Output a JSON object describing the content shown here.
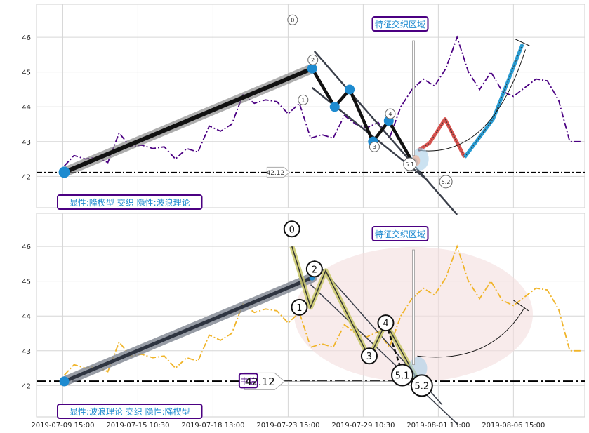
{
  "chart_data": [
    {
      "type": "line",
      "panel": "top",
      "ylim": [
        41.1,
        46.95
      ],
      "y_ticks": [
        "42",
        "43",
        "44",
        "45",
        "46"
      ],
      "grid": true,
      "annotations": {
        "region_label": "特征交织区域",
        "bottom_label": "显性:降楔型 交织 隐性:波浪理论",
        "level_value": "42.12",
        "wave_labels": [
          "0",
          "1",
          "2",
          "3",
          "4",
          "5.1",
          "5.2"
        ]
      },
      "colors": {
        "price": "#4b0082",
        "trend": "#111111",
        "markers": "#1e8bd0",
        "channel": "#3a3f4a",
        "proj_red": "#d9534f",
        "proj_blue": "#2a9fd6",
        "box_border": "#4b0082",
        "box_text": "#1e8bd0"
      },
      "series": [
        {
          "style": "dashdot",
          "x": [
            0.2,
            1.5,
            3.0,
            4.5,
            6.0,
            7.5,
            9.0,
            10.5,
            12.0,
            13.5,
            15.0,
            16.5,
            18.0,
            19.5,
            21.0,
            22.5,
            24.0,
            25.5,
            27.0,
            28.5,
            30.0,
            31.5,
            33.0,
            34.5,
            36.0,
            37.5,
            39.0,
            40.5,
            42.0,
            43.5,
            45.0,
            46.5,
            48.0,
            49.5,
            51.0,
            52.5,
            54.0,
            55.5,
            57.0,
            58.5,
            60.0,
            61.5,
            63.0,
            64.5,
            66.0,
            67.5,
            69.0
          ],
          "y": [
            42.3,
            42.6,
            42.5,
            42.55,
            42.4,
            43.25,
            42.85,
            42.9,
            42.8,
            42.85,
            42.5,
            42.8,
            42.7,
            43.45,
            43.3,
            43.5,
            44.35,
            44.1,
            44.2,
            44.15,
            43.8,
            44.1,
            43.1,
            43.2,
            43.1,
            43.75,
            43.5,
            43.4,
            43.55,
            43.1,
            44.0,
            44.5,
            44.8,
            44.6,
            45.1,
            46.0,
            45.0,
            44.5,
            45.0,
            44.45,
            44.3,
            44.55,
            44.8,
            44.75,
            44.2,
            43.0,
            43.0
          ]
        }
      ],
      "wave_points": {
        "x": [
          0.2,
          33.2,
          36.2,
          38.2,
          41.3,
          43.4,
          46.6
        ],
        "y": [
          42.12,
          45.1,
          44.0,
          44.5,
          43.0,
          43.6,
          42.4
        ]
      },
      "projection": {
        "x": [
          47.3,
          48.8,
          50.9,
          53.5,
          57.3,
          61.2
        ],
        "y": [
          42.75,
          42.95,
          43.65,
          42.55,
          43.65,
          45.8
        ]
      }
    },
    {
      "type": "line",
      "panel": "bottom",
      "xlim": [
        -3.5,
        69.5
      ],
      "ylim": [
        41.1,
        46.95
      ],
      "x_ticks": [
        "2019-07-09 15:00",
        "2019-07-15 10:30",
        "2019-07-18 13:00",
        "2019-07-23 15:00",
        "2019-07-29 10:30",
        "2019-08-01 13:00",
        "2019-08-06 15:00"
      ],
      "y_ticks": [
        "42",
        "43",
        "44",
        "45",
        "46"
      ],
      "grid": true,
      "annotations": {
        "region_label": "特征交织区域",
        "bottom_label": "显性:波浪理论 交织 隐性:降楔型",
        "level_label_prefix": "中信",
        "level_value": "42.12",
        "wave_labels": [
          "0",
          "1",
          "2",
          "3",
          "4",
          "5.1",
          "5.2"
        ]
      },
      "colors": {
        "price": "#f0b429",
        "trend": "#2e3440",
        "wave": "#c9c86a",
        "ellipse": "#f7e3e3",
        "markers": "#1e8bd0",
        "box_border": "#4b0082",
        "box_text": "#1e8bd0"
      },
      "series": [
        {
          "style": "dashdot",
          "x": [
            0.2,
            1.5,
            3.0,
            4.5,
            6.0,
            7.5,
            9.0,
            10.5,
            12.0,
            13.5,
            15.0,
            16.5,
            18.0,
            19.5,
            21.0,
            22.5,
            24.0,
            25.5,
            27.0,
            28.5,
            30.0,
            31.5,
            33.0,
            34.5,
            36.0,
            37.5,
            39.0,
            40.5,
            42.0,
            43.5,
            45.0,
            46.5,
            48.0,
            49.5,
            51.0,
            52.5,
            54.0,
            55.5,
            57.0,
            58.5,
            60.0,
            61.5,
            63.0,
            64.5,
            66.0,
            67.5,
            69.0
          ],
          "y": [
            42.3,
            42.6,
            42.5,
            42.55,
            42.4,
            43.25,
            42.85,
            42.9,
            42.8,
            42.85,
            42.5,
            42.8,
            42.7,
            43.45,
            43.3,
            43.5,
            44.35,
            44.1,
            44.2,
            44.15,
            43.8,
            44.1,
            43.1,
            43.2,
            43.1,
            43.75,
            43.5,
            43.4,
            43.55,
            43.1,
            44.0,
            44.5,
            44.8,
            44.6,
            45.1,
            46.0,
            45.0,
            44.5,
            45.0,
            44.45,
            44.3,
            44.55,
            44.8,
            44.75,
            44.2,
            43.0,
            43.0
          ]
        }
      ],
      "wave_points": {
        "x": [
          30.5,
          33.0,
          35.0,
          40.8,
          43.0,
          47.0
        ],
        "y": [
          46.0,
          44.25,
          45.3,
          42.8,
          43.8,
          42.25
        ]
      }
    }
  ]
}
